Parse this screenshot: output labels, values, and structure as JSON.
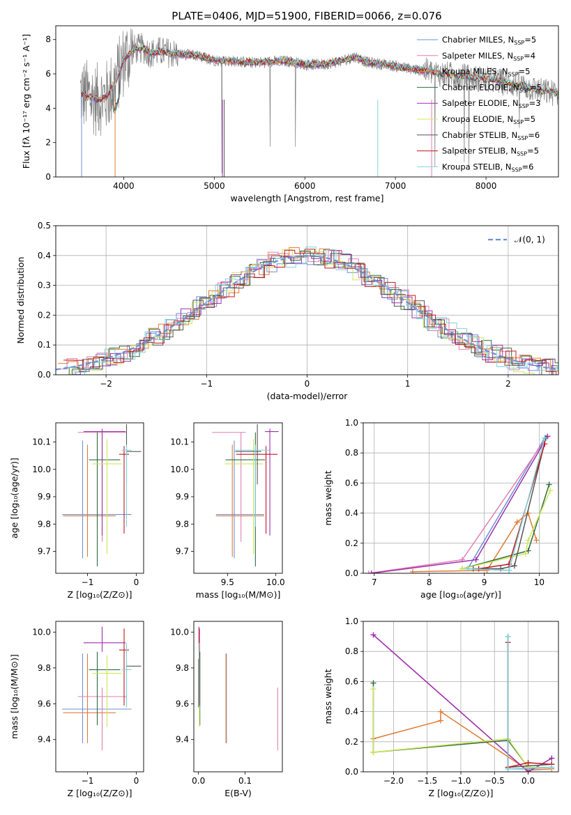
{
  "figure_title": "PLATE=0406, MJD=51900, FIBERID=0066, z=0.076",
  "series_styles": [
    {
      "key": "chabrier_miles",
      "label": "Chabrier MILES, N",
      "sub": "SSP",
      "eq": "=5",
      "color": "#6c8fd6"
    },
    {
      "key": "salpeter_miles",
      "label": "Salpeter MILES, N",
      "sub": "SSP",
      "eq": "=4",
      "color": "#e27fb3"
    },
    {
      "key": "kroupa_miles",
      "label": "Kroupa MILES, N",
      "sub": "SSP",
      "eq": "=5",
      "color": "#e07b34"
    },
    {
      "key": "chabrier_elodie",
      "label": "Chabrier ELODIE, N",
      "sub": "SSP",
      "eq": "=5",
      "color": "#2f6b3d"
    },
    {
      "key": "salpeter_elodie",
      "label": "Salpeter ELODIE, N",
      "sub": "SSP",
      "eq": "=3",
      "color": "#9b2fae"
    },
    {
      "key": "kroupa_elodie",
      "label": "Kroupa ELODIE, N",
      "sub": "SSP",
      "eq": "=5",
      "color": "#cde85a"
    },
    {
      "key": "chabrier_stelib",
      "label": "Chabrier STELIB, N",
      "sub": "SSP",
      "eq": "=6",
      "color": "#555555"
    },
    {
      "key": "salpeter_stelib",
      "label": "Salpeter STELIB, N",
      "sub": "SSP",
      "eq": "=5",
      "color": "#c0161c"
    },
    {
      "key": "kroupa_stelib",
      "label": "Kroupa STELIB, N",
      "sub": "SSP",
      "eq": "=6",
      "color": "#7fd3dd"
    }
  ],
  "chart_data": [
    {
      "id": "spectrum",
      "type": "line",
      "title": "PLATE=0406, MJD=51900, FIBERID=0066, z=0.076",
      "xlabel": "wavelength [Angstrom, rest frame]",
      "ylabel": "Flux [fλ 10⁻¹⁷ erg cm⁻² s⁻¹ A⁻¹]",
      "xlim": [
        3250,
        8800
      ],
      "ylim": [
        0,
        8.8
      ],
      "xticks": [
        4000,
        5000,
        6000,
        7000,
        8000
      ],
      "yticks": [
        0,
        2,
        4,
        6,
        8
      ],
      "data_color": "#808080",
      "continuum": [
        [
          3520,
          4.9
        ],
        [
          3600,
          4.7
        ],
        [
          3700,
          4.5
        ],
        [
          3800,
          4.6
        ],
        [
          3900,
          5.4
        ],
        [
          4000,
          6.8
        ],
        [
          4100,
          7.4
        ],
        [
          4200,
          7.5
        ],
        [
          4300,
          7.2
        ],
        [
          4400,
          7.3
        ],
        [
          4600,
          7.15
        ],
        [
          4800,
          7.05
        ],
        [
          5000,
          6.8
        ],
        [
          5200,
          6.75
        ],
        [
          5400,
          6.65
        ],
        [
          5600,
          6.7
        ],
        [
          5800,
          6.75
        ],
        [
          6000,
          6.55
        ],
        [
          6200,
          6.55
        ],
        [
          6400,
          6.75
        ],
        [
          6560,
          7.0
        ],
        [
          6700,
          6.65
        ],
        [
          6900,
          6.55
        ],
        [
          7100,
          6.35
        ],
        [
          7300,
          6.2
        ],
        [
          7500,
          6.0
        ],
        [
          7800,
          5.8
        ],
        [
          8100,
          5.6
        ],
        [
          8400,
          5.3
        ],
        [
          8600,
          5.0
        ],
        [
          8800,
          4.85
        ]
      ],
      "legend": "upper right"
    },
    {
      "id": "residuals",
      "type": "bar",
      "xlabel": "(data-model)/error",
      "ylabel": "Normed distribution",
      "xlim": [
        -2.5,
        2.5
      ],
      "ylim": [
        0,
        0.5
      ],
      "xticks": [
        -2,
        -1,
        0,
        1,
        2
      ],
      "yticks": [
        0.0,
        0.1,
        0.2,
        0.3,
        0.4,
        0.5
      ],
      "grid": true,
      "reference_curve": {
        "name": "𝒩(0, 1)",
        "mean": 0,
        "sigma": 1,
        "color": "#6c8fd6"
      },
      "bin_width": 0.1
    },
    {
      "id": "age_vs_z",
      "type": "scatter",
      "xlabel": "Z [log₁₀(Z/Z⊙)]",
      "ylabel": "age  [log₁₀(age/yr)]",
      "xlim": [
        -1.65,
        0.15
      ],
      "ylim": [
        9.62,
        10.17
      ],
      "xticks": [
        -1,
        0
      ],
      "yticks": [
        9.7,
        9.8,
        9.9,
        10.0,
        10.1
      ]
    },
    {
      "id": "age_vs_mass",
      "type": "scatter",
      "xlabel": "mass [log₁₀(M/M⊙)]",
      "ylabel": "",
      "xlim": [
        9.15,
        10.07
      ],
      "ylim": [
        9.62,
        10.17
      ],
      "xticks": [
        9.5,
        10.0
      ],
      "yticks": [
        9.7,
        9.8,
        9.9,
        10.0,
        10.1
      ]
    },
    {
      "id": "weight_vs_age",
      "type": "line",
      "xlabel": "age  [log₁₀(age/yr)]",
      "ylabel": "mass weight",
      "xlim": [
        6.8,
        10.35
      ],
      "ylim": [
        0,
        1.0
      ],
      "xticks": [
        7,
        8,
        9,
        10
      ],
      "yticks": [
        0.0,
        0.2,
        0.4,
        0.6,
        0.8,
        1.0
      ],
      "grid": true,
      "series": [
        {
          "key": "chabrier_miles",
          "x": [
            9.45,
            8.7,
            10.1
          ],
          "y": [
            0.02,
            0.03,
            0.9
          ]
        },
        {
          "key": "salpeter_miles",
          "x": [
            6.9,
            8.6,
            10.15
          ],
          "y": [
            0.0,
            0.09,
            0.91
          ]
        },
        {
          "key": "kroupa_miles",
          "x": [
            7.7,
            9.05,
            9.6,
            9.8,
            9.95
          ],
          "y": [
            0.01,
            0.02,
            0.34,
            0.4,
            0.22
          ]
        },
        {
          "key": "chabrier_elodie",
          "x": [
            8.6,
            9.8,
            10.18
          ],
          "y": [
            0.03,
            0.15,
            0.59
          ]
        },
        {
          "key": "salpeter_elodie",
          "x": [
            6.95,
            8.85,
            10.15
          ],
          "y": [
            0.0,
            0.09,
            0.91
          ]
        },
        {
          "key": "kroupa_elodie",
          "x": [
            8.6,
            9.75,
            9.8,
            10.2
          ],
          "y": [
            0.03,
            0.13,
            0.22,
            0.55
          ]
        },
        {
          "key": "chabrier_stelib",
          "x": [
            8.8,
            9.3,
            9.55,
            10.12
          ],
          "y": [
            0.03,
            0.03,
            0.05,
            0.9
          ]
        },
        {
          "key": "salpeter_stelib",
          "x": [
            8.9,
            9.45,
            10.1
          ],
          "y": [
            0.03,
            0.06,
            0.86
          ]
        },
        {
          "key": "kroupa_stelib",
          "x": [
            8.7,
            9.45,
            10.1
          ],
          "y": [
            0.03,
            0.02,
            0.9
          ]
        }
      ]
    },
    {
      "id": "mass_vs_z",
      "type": "scatter",
      "xlabel": "Z [log₁₀(Z/Z⊙)]",
      "ylabel": "mass [log₁₀(M/M⊙)]",
      "xlim": [
        -1.65,
        0.15
      ],
      "ylim": [
        9.22,
        10.06
      ],
      "xticks": [
        -1,
        0
      ],
      "yticks": [
        9.4,
        9.6,
        9.8,
        10.0
      ]
    },
    {
      "id": "mass_vs_ebv",
      "type": "scatter",
      "xlabel": "E(B-V)",
      "ylabel": "",
      "xlim": [
        -0.01,
        0.18
      ],
      "ylim": [
        9.22,
        10.06
      ],
      "xticks": [
        0.0,
        0.1
      ],
      "yticks": [
        9.4,
        9.6,
        9.8,
        10.0
      ]
    },
    {
      "id": "weight_vs_z",
      "type": "line",
      "xlabel": "Z [log₁₀(Z/Z⊙)]",
      "ylabel": "mass weight",
      "xlim": [
        -2.45,
        0.45
      ],
      "ylim": [
        0,
        1.0
      ],
      "xticks": [
        -2.0,
        -1.5,
        -1.0,
        -0.5,
        0.0
      ],
      "yticks": [
        0.0,
        0.2,
        0.4,
        0.6,
        0.8,
        1.0
      ],
      "grid": true,
      "series": [
        {
          "key": "chabrier_miles",
          "x": [
            -0.3,
            -0.3,
            0.0,
            0.35
          ],
          "y": [
            0.9,
            0.02,
            0.02,
            0.03
          ]
        },
        {
          "key": "salpeter_miles",
          "x": [
            -2.3,
            0.0,
            0.35
          ],
          "y": [
            0.91,
            0.0,
            0.09
          ]
        },
        {
          "key": "kroupa_miles",
          "x": [
            -2.3,
            -1.3,
            -1.3,
            0.0,
            0.35
          ],
          "y": [
            0.22,
            0.34,
            0.4,
            0.01,
            0.02
          ]
        },
        {
          "key": "chabrier_elodie",
          "x": [
            -2.3,
            -2.3,
            -0.3,
            0.0
          ],
          "y": [
            0.59,
            0.13,
            0.21,
            0.03
          ]
        },
        {
          "key": "salpeter_elodie",
          "x": [
            -2.3,
            0.0,
            0.35
          ],
          "y": [
            0.91,
            0.0,
            0.09
          ]
        },
        {
          "key": "kroupa_elodie",
          "x": [
            -2.3,
            -2.3,
            -0.3,
            0.0,
            0.35
          ],
          "y": [
            0.55,
            0.13,
            0.22,
            0.03,
            0.03
          ]
        },
        {
          "key": "chabrier_stelib",
          "x": [
            -0.3,
            -0.3,
            0.35
          ],
          "y": [
            0.9,
            0.03,
            0.05
          ]
        },
        {
          "key": "salpeter_stelib",
          "x": [
            -0.3,
            -0.3,
            0.0,
            0.35
          ],
          "y": [
            0.86,
            0.03,
            0.06,
            0.05
          ]
        },
        {
          "key": "kroupa_stelib",
          "x": [
            -0.3,
            -0.3,
            0.35
          ],
          "y": [
            0.9,
            0.02,
            0.03
          ]
        }
      ]
    }
  ],
  "param_estimates": [
    {
      "key": "chabrier_miles",
      "Z": -1.1,
      "Zerr": [
        0.42,
        1.0
      ],
      "age": 9.835,
      "ageErr": [
        0.16,
        0.27
      ],
      "mass": 9.57,
      "massErr": [
        0.19,
        0.31
      ],
      "ebv": 0.06,
      "ebvErr": 0.0
    },
    {
      "key": "salpeter_miles",
      "Z": -0.7,
      "Zerr": [
        0.5,
        0.5
      ],
      "age": 10.135,
      "ageErr": [
        0.4,
        0.0
      ],
      "mass": 9.64,
      "massErr": [
        0.3,
        0.05
      ],
      "ebv": 0.17,
      "ebvErr": 0.0
    },
    {
      "key": "kroupa_miles",
      "Z": -1.0,
      "Zerr": [
        0.5,
        0.58
      ],
      "age": 9.83,
      "ageErr": [
        0.15,
        0.26
      ],
      "mass": 9.55,
      "massErr": [
        0.17,
        0.33
      ],
      "ebv": 0.059,
      "ebvErr": 0.0
    },
    {
      "key": "chabrier_elodie",
      "Z": -0.8,
      "Zerr": [
        0.17,
        0.47
      ],
      "age": 10.035,
      "ageErr": [
        0.39,
        0.1
      ],
      "mass": 9.79,
      "massErr": [
        0.31,
        0.1
      ],
      "ebv": 0.003,
      "ebvErr": 0.0
    },
    {
      "key": "salpeter_elodie",
      "Z": -0.7,
      "Zerr": [
        0.38,
        0.48
      ],
      "age": 10.138,
      "ageErr": [
        0.38,
        0.01
      ],
      "mass": 9.94,
      "massErr": [
        0.05,
        0.09
      ],
      "ebv": 0.001,
      "ebvErr": 0.0
    },
    {
      "key": "kroupa_elodie",
      "Z": -0.6,
      "Zerr": [
        0.3,
        0.3
      ],
      "age": 10.02,
      "ageErr": [
        0.33,
        0.09
      ],
      "mass": 9.77,
      "massErr": [
        0.3,
        0.1
      ],
      "ebv": 0.002,
      "ebvErr": 0.0
    },
    {
      "key": "chabrier_stelib",
      "Z": -0.2,
      "Zerr": [
        0.01,
        0.3
      ],
      "age": 10.065,
      "ageErr": [
        0.12,
        0.1
      ],
      "mass": 9.81,
      "massErr": [
        0.23,
        0.04
      ],
      "ebv": 0.0,
      "ebvErr": 0.0
    },
    {
      "key": "salpeter_stelib",
      "Z": -0.25,
      "Zerr": [
        0.1,
        0.1
      ],
      "age": 10.055,
      "ageErr": [
        0.29,
        0.03
      ],
      "mass": 9.9,
      "massErr": [
        0.31,
        0.12
      ],
      "ebv": 0.002,
      "ebvErr": 0.0
    },
    {
      "key": "kroupa_stelib",
      "Z": -0.2,
      "Zerr": [
        0.1,
        0.1
      ],
      "age": 10.07,
      "ageErr": [
        0.28,
        0.02
      ],
      "mass": 9.79,
      "massErr": [
        0.21,
        0.15
      ],
      "ebv": 0.001,
      "ebvErr": 0.0
    }
  ]
}
